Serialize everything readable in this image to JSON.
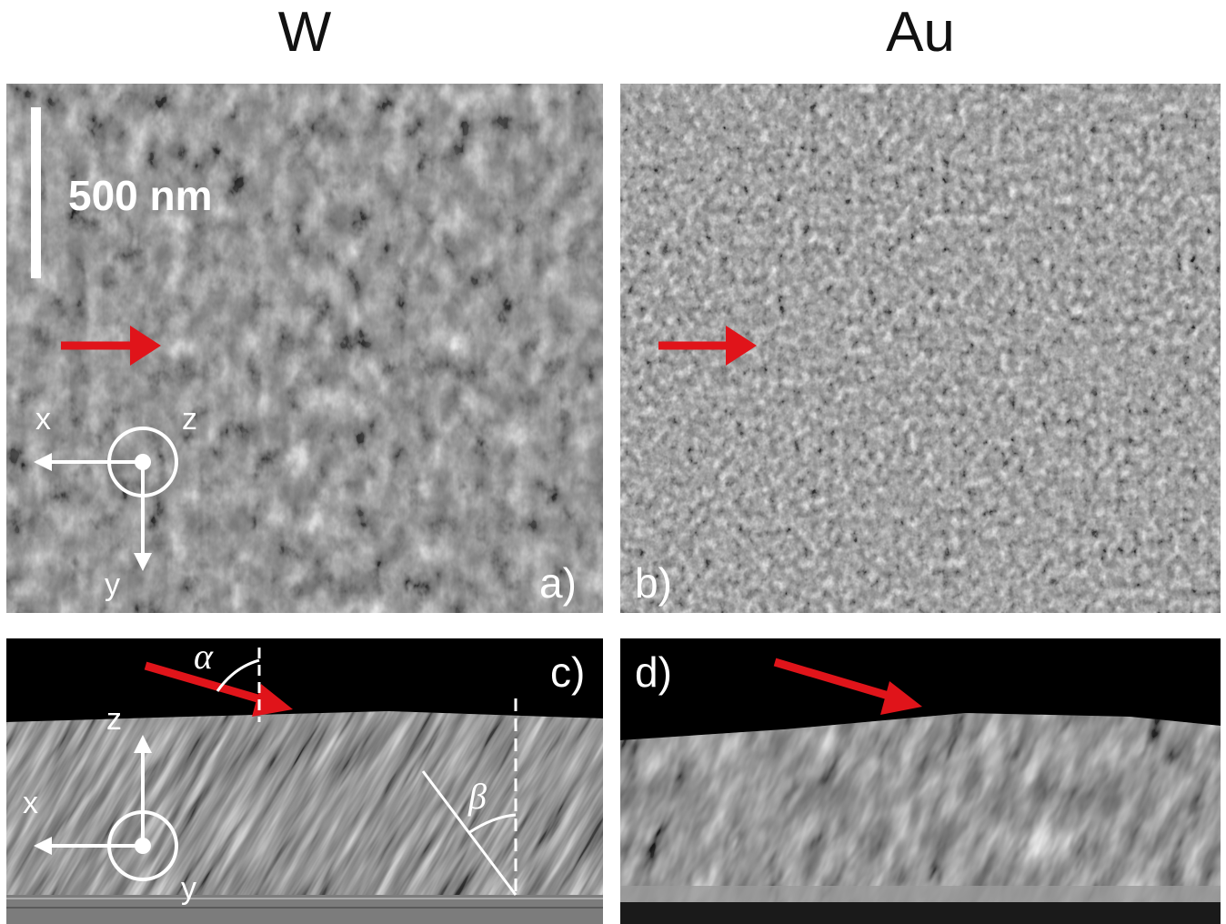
{
  "titles": {
    "left": "W",
    "right": "Au"
  },
  "panels": {
    "a": {
      "label": "a)",
      "scale_bar": "500 nm",
      "axes": {
        "x": "x",
        "y": "y",
        "z": "z"
      }
    },
    "b": {
      "label": "b)"
    },
    "c": {
      "label": "c)",
      "axes": {
        "x": "x",
        "y": "y",
        "z": "z"
      },
      "angles": {
        "alpha": "α",
        "beta": "β"
      }
    },
    "d": {
      "label": "d)"
    }
  },
  "colors": {
    "arrow": "#e0141a",
    "annotation": "#ffffff",
    "background": "#000000"
  }
}
